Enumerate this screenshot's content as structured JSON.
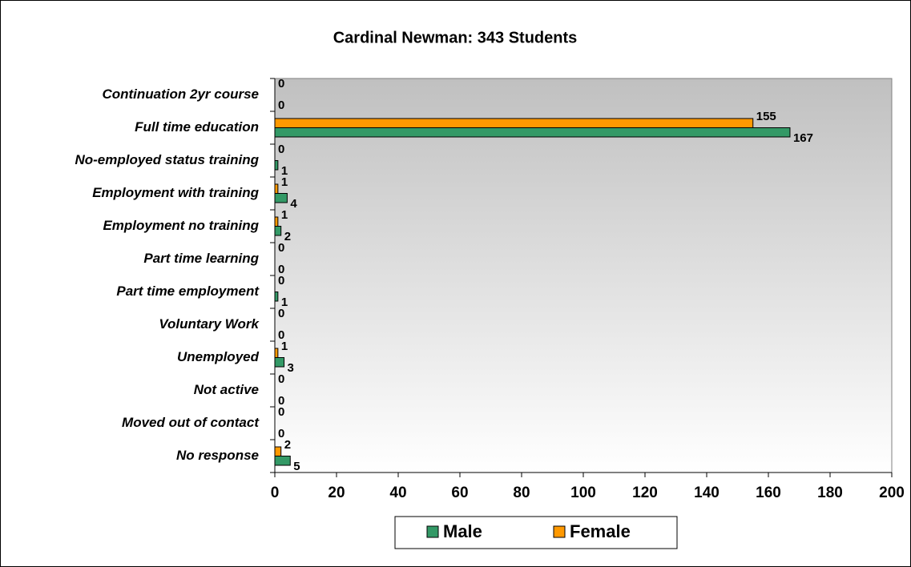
{
  "chart_data": {
    "type": "bar",
    "orientation": "horizontal",
    "title": "Cardinal Newman: 343 Students",
    "categories": [
      "Continuation 2yr course",
      "Full time education",
      "No-employed status training",
      "Employment with training",
      "Employment no training",
      "Part time learning",
      "Part time employment",
      "Voluntary Work",
      "Unemployed",
      "Not active",
      "Moved out of contact",
      "No response"
    ],
    "series": [
      {
        "name": "Male",
        "color": "#339966",
        "values": [
          0,
          167,
          1,
          4,
          2,
          0,
          1,
          0,
          3,
          0,
          0,
          5
        ]
      },
      {
        "name": "Female",
        "color": "#ff9900",
        "values": [
          0,
          155,
          0,
          1,
          1,
          0,
          0,
          0,
          1,
          0,
          0,
          2
        ]
      }
    ],
    "xlim": [
      0,
      200
    ],
    "xticks": [
      0,
      20,
      40,
      60,
      80,
      100,
      120,
      140,
      160,
      180,
      200
    ],
    "legend": "bottom"
  }
}
